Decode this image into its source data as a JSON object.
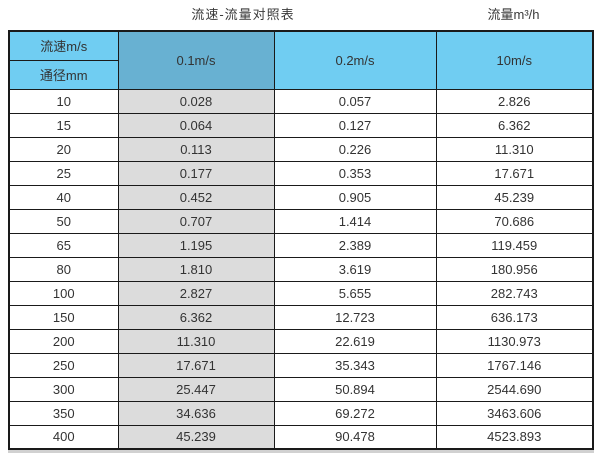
{
  "titles": {
    "main": "流速-流量对照表",
    "right": "流量m³/h"
  },
  "table": {
    "corner": {
      "top": "流速m/s",
      "bottom": "通径mm"
    },
    "columns": [
      "0.1m/s",
      "0.2m/s",
      "10m/s"
    ],
    "rows": [
      [
        "10",
        "0.028",
        "0.057",
        "2.826"
      ],
      [
        "15",
        "0.064",
        "0.127",
        "6.362"
      ],
      [
        "20",
        "0.113",
        "0.226",
        "11.310"
      ],
      [
        "25",
        "0.177",
        "0.353",
        "17.671"
      ],
      [
        "40",
        "0.452",
        "0.905",
        "45.239"
      ],
      [
        "50",
        "0.707",
        "1.414",
        "70.686"
      ],
      [
        "65",
        "1.195",
        "2.389",
        "119.459"
      ],
      [
        "80",
        "1.810",
        "3.619",
        "180.956"
      ],
      [
        "100",
        "2.827",
        "5.655",
        "282.743"
      ],
      [
        "150",
        "6.362",
        "12.723",
        "636.173"
      ],
      [
        "200",
        "11.310",
        "22.619",
        "1130.973"
      ],
      [
        "250",
        "17.671",
        "35.343",
        "1767.146"
      ],
      [
        "300",
        "25.447",
        "50.894",
        "2544.690"
      ],
      [
        "350",
        "34.636",
        "69.272",
        "3463.606"
      ],
      [
        "400",
        "45.239",
        "90.478",
        "4523.893"
      ]
    ]
  },
  "colors": {
    "header_blue": "#70cdf2",
    "header_blue_dark": "#68b1d2",
    "column_gray": "#dcdcdc",
    "border": "#1a1a1a",
    "text": "#333333"
  },
  "chart_data": {
    "type": "table",
    "title": "流速-流量对照表",
    "unit_label": "流量m³/h",
    "row_axis_label": "通径mm",
    "col_axis_label": "流速m/s",
    "columns": [
      "0.1m/s",
      "0.2m/s",
      "10m/s"
    ],
    "dn_mm": [
      10,
      15,
      20,
      25,
      40,
      50,
      65,
      80,
      100,
      150,
      200,
      250,
      300,
      350,
      400
    ],
    "series": [
      {
        "name": "0.1m/s",
        "values": [
          0.028,
          0.064,
          0.113,
          0.177,
          0.452,
          0.707,
          1.195,
          1.81,
          2.827,
          6.362,
          11.31,
          17.671,
          25.447,
          34.636,
          45.239
        ]
      },
      {
        "name": "0.2m/s",
        "values": [
          0.057,
          0.127,
          0.226,
          0.353,
          0.905,
          1.414,
          2.389,
          3.619,
          5.655,
          12.723,
          22.619,
          35.343,
          50.894,
          69.272,
          90.478
        ]
      },
      {
        "name": "10m/s",
        "values": [
          2.826,
          6.362,
          11.31,
          17.671,
          45.239,
          70.686,
          119.459,
          180.956,
          282.743,
          636.173,
          1130.973,
          1767.146,
          2544.69,
          3463.606,
          4523.893
        ]
      }
    ]
  }
}
